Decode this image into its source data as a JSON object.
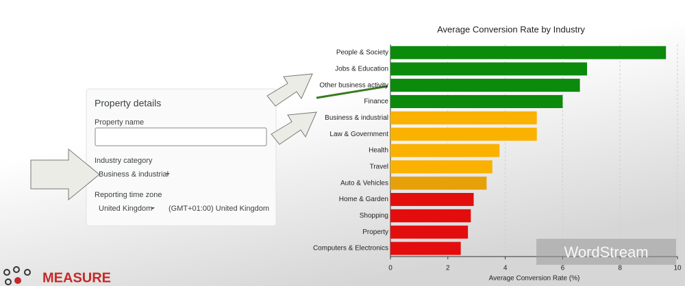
{
  "chart_data": {
    "type": "barh",
    "title": "Average Conversion Rate by Industry",
    "x_label": "Average Conversion Rate (%)",
    "categories": [
      "People & Society",
      "Jobs & Education",
      "Other business activity",
      "Finance",
      "Business & industrial",
      "Law & Government",
      "Health",
      "Travel",
      "Auto & Vehicles",
      "Home & Garden",
      "Shopping",
      "Property",
      "Computers & Electronics"
    ],
    "values": [
      9.6,
      6.85,
      6.6,
      6.0,
      5.1,
      5.1,
      3.8,
      3.55,
      3.35,
      2.9,
      2.8,
      2.7,
      2.45
    ],
    "colors": [
      "#0b8a0b",
      "#0b8a0b",
      "#0b8a0b",
      "#0b8a0b",
      "#fbb100",
      "#fbb100",
      "#fbb100",
      "#fbb100",
      "#e6a10a",
      "#e30d0d",
      "#e30d0d",
      "#e30d0d",
      "#e30d0d"
    ],
    "xlim": [
      0,
      10
    ],
    "xticks": [
      0,
      2,
      4,
      6,
      8,
      10
    ],
    "grid": true
  },
  "property_details": {
    "title": "Property details",
    "name_label": "Property name",
    "industry_label": "Industry category",
    "industry_value": "Business & industrial",
    "timezone_label": "Reporting time zone",
    "country_value": "United Kingdom",
    "timezone_value": "(GMT+01:00) United Kingdom"
  },
  "brand": "MEASURE",
  "watermark": "WordStream"
}
